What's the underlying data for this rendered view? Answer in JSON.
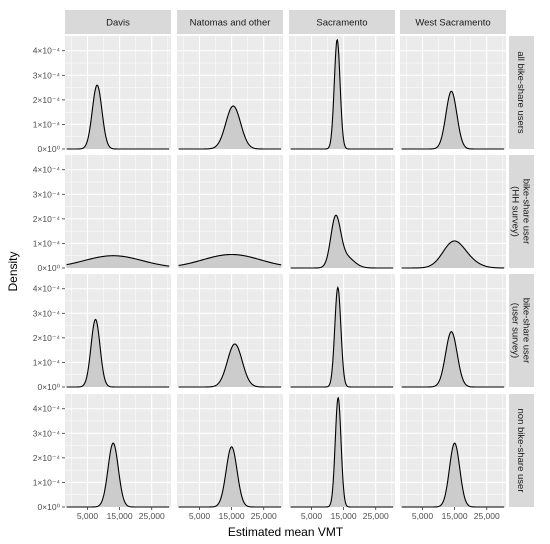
{
  "chart_data": {
    "type": "area",
    "facet_type": "density",
    "xlabel": "Estimated mean VMT",
    "ylabel": "Density",
    "xlim": [
      -2000,
      31000
    ],
    "ylim": [
      0,
      0.00046
    ],
    "x_ticks": [
      5000,
      15000,
      25000
    ],
    "x_tick_labels": [
      "5,000",
      "15,000",
      "25,000"
    ],
    "y_ticks": [
      0,
      0.0001,
      0.0002,
      0.0003,
      0.0004
    ],
    "y_tick_labels": [
      "0×10⁰",
      "1×10⁻⁴",
      "2×10⁻⁴",
      "3×10⁻⁴",
      "4×10⁻⁴"
    ],
    "columns": [
      "Davis",
      "Natomas and other",
      "Sacramento",
      "West Sacramento"
    ],
    "rows": [
      "all bike-share users",
      "bike-share user\n(HH survey)",
      "bike-share user\n(user survey)",
      "non bike-share user"
    ],
    "grid": true,
    "legend": "none",
    "colors": {
      "panel_bg": "#ebebeb",
      "grid_major": "#ffffff",
      "strip_bg": "#d9d9d9",
      "fill": "#cccccc",
      "line": "#000000"
    },
    "panels": [
      {
        "row": 0,
        "col": 0,
        "components": [
          {
            "mean": 8000,
            "sd": 1500,
            "weight": 1
          }
        ],
        "peak": 0.00026
      },
      {
        "row": 0,
        "col": 1,
        "components": [
          {
            "mean": 15500,
            "sd": 2300,
            "weight": 1
          }
        ],
        "peak": 0.000175
      },
      {
        "row": 0,
        "col": 2,
        "components": [
          {
            "mean": 13000,
            "sd": 900,
            "weight": 1
          }
        ],
        "peak": 0.000445
      },
      {
        "row": 0,
        "col": 3,
        "components": [
          {
            "mean": 14000,
            "sd": 1700,
            "weight": 1
          }
        ],
        "peak": 0.000235
      },
      {
        "row": 1,
        "col": 0,
        "components": [
          {
            "mean": 13000,
            "sd": 9000,
            "weight": 1
          }
        ],
        "peak": 5e-05
      },
      {
        "row": 1,
        "col": 1,
        "components": [
          {
            "mean": 15000,
            "sd": 9000,
            "weight": 1
          }
        ],
        "peak": 5.5e-05
      },
      {
        "row": 1,
        "col": 2,
        "components": [
          {
            "mean": 12500,
            "sd": 1500,
            "weight": 0.8
          },
          {
            "mean": 15500,
            "sd": 2600,
            "weight": 0.2
          }
        ],
        "peak": 0.000215
      },
      {
        "row": 1,
        "col": 3,
        "components": [
          {
            "mean": 14500,
            "sd": 3300,
            "weight": 0.8
          },
          {
            "mean": 19000,
            "sd": 3500,
            "weight": 0.2
          }
        ],
        "peak": 0.00011
      },
      {
        "row": 2,
        "col": 0,
        "components": [
          {
            "mean": 7500,
            "sd": 1400,
            "weight": 1
          }
        ],
        "peak": 0.000275
      },
      {
        "row": 2,
        "col": 1,
        "components": [
          {
            "mean": 16000,
            "sd": 2300,
            "weight": 1
          }
        ],
        "peak": 0.000175
      },
      {
        "row": 2,
        "col": 2,
        "components": [
          {
            "mean": 13200,
            "sd": 950,
            "weight": 1
          }
        ],
        "peak": 0.000405
      },
      {
        "row": 2,
        "col": 3,
        "components": [
          {
            "mean": 14000,
            "sd": 1800,
            "weight": 1
          }
        ],
        "peak": 0.000225
      },
      {
        "row": 3,
        "col": 0,
        "components": [
          {
            "mean": 13000,
            "sd": 1600,
            "weight": 1
          }
        ],
        "peak": 0.00026
      },
      {
        "row": 3,
        "col": 1,
        "components": [
          {
            "mean": 15000,
            "sd": 1700,
            "weight": 1
          }
        ],
        "peak": 0.000245
      },
      {
        "row": 3,
        "col": 2,
        "components": [
          {
            "mean": 13300,
            "sd": 900,
            "weight": 1
          }
        ],
        "peak": 0.000445
      },
      {
        "row": 3,
        "col": 3,
        "components": [
          {
            "mean": 15000,
            "sd": 1600,
            "weight": 1
          }
        ],
        "peak": 0.00026
      }
    ]
  }
}
